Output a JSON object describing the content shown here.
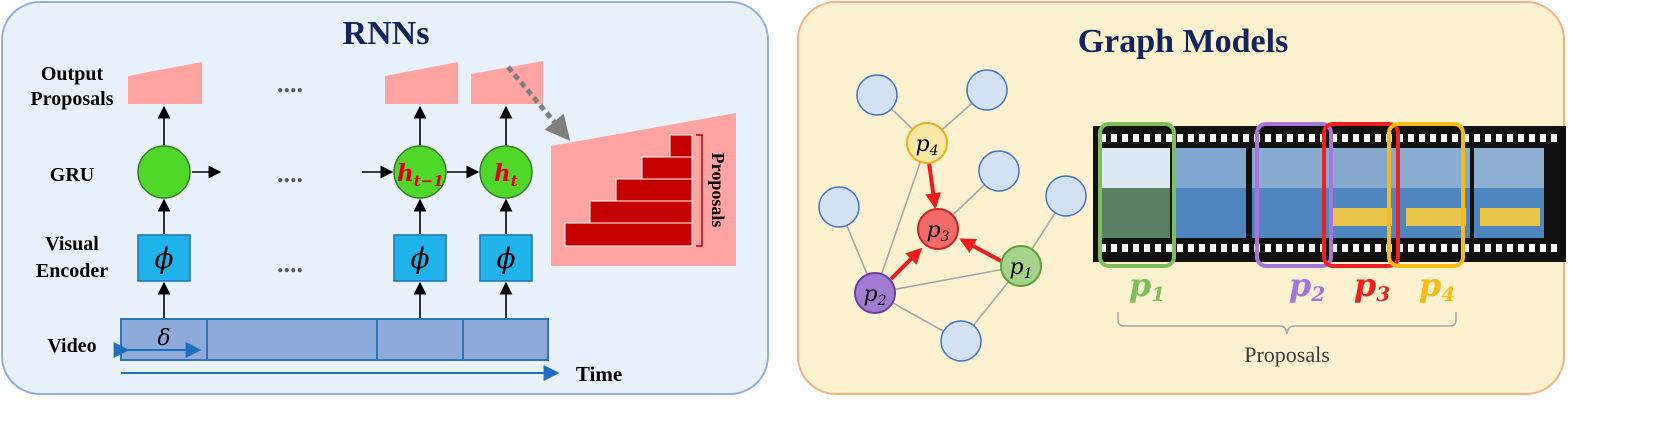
{
  "left_panel": {
    "title": "RNNs",
    "row_labels": {
      "output_line1": "Output",
      "output_line2": "Proposals",
      "gru": "GRU",
      "encoder_line1": "Visual",
      "encoder_line2": "Encoder",
      "video": "Video"
    },
    "ellipsis": "....",
    "phi": "ϕ",
    "delta": "δ",
    "hidden_prev": "h",
    "hidden_prev_sub": "t−1",
    "hidden_cur": "h",
    "hidden_cur_sub": "t",
    "zoom_label": "Proposals",
    "time_label": "Time"
  },
  "right_panel": {
    "title": "Graph Models",
    "node_base": "p",
    "nodes": [
      {
        "sub": "4",
        "color": "#fde9a6",
        "stroke": "#e7b21a"
      },
      {
        "sub": "3",
        "color": "#f26b6b",
        "stroke": "#d42020"
      },
      {
        "sub": "1",
        "color": "#a6d38a",
        "stroke": "#5e9f3c"
      },
      {
        "sub": "2",
        "color": "#a47bd2",
        "stroke": "#6b3fa0"
      }
    ],
    "proposal_labels": [
      {
        "base": "p",
        "sub": "1",
        "color": "#7fbf5a"
      },
      {
        "base": "p",
        "sub": "2",
        "color": "#a775d6"
      },
      {
        "base": "p",
        "sub": "3",
        "color": "#ef2020"
      },
      {
        "base": "p",
        "sub": "4",
        "color": "#f7bb13"
      }
    ],
    "brace_label": "Proposals"
  }
}
